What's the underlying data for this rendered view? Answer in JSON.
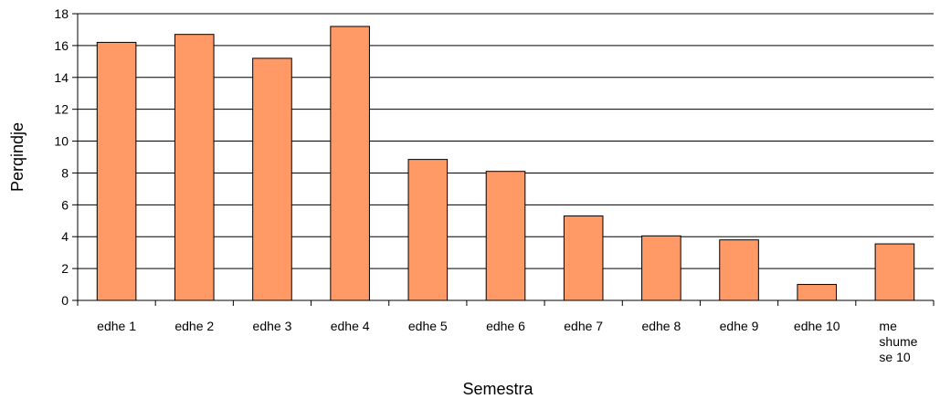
{
  "chart_data": {
    "type": "bar",
    "title": "",
    "xlabel": "Semestra",
    "ylabel": "Perqindje",
    "categories": [
      "edhe 1",
      "edhe 2",
      "edhe 3",
      "edhe 4",
      "edhe 5",
      "edhe 6",
      "edhe 7",
      "edhe 8",
      "edhe 9",
      "edhe 10",
      "me shume se 10"
    ],
    "values": [
      16.2,
      16.7,
      15.2,
      17.2,
      8.85,
      8.1,
      5.3,
      4.05,
      3.8,
      1.0,
      3.55
    ],
    "ylim": [
      0,
      18
    ],
    "yticks": [
      0,
      2,
      4,
      6,
      8,
      10,
      12,
      14,
      16,
      18
    ],
    "grid": true,
    "legend": "none",
    "colors": {
      "bar_fill": "#FF9966",
      "bar_stroke": "#000000",
      "gridline": "#000000"
    }
  }
}
